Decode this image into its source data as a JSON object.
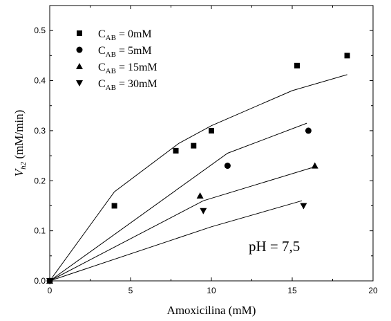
{
  "chart_data": {
    "type": "scatter",
    "xlabel": "Amoxicilina (mM)",
    "ylabel": {
      "main": "V",
      "sub": "h2",
      "unit": " (mM/min)"
    },
    "xlim": [
      0,
      20
    ],
    "ylim": [
      0,
      0.55
    ],
    "xticks": [
      "0",
      "5",
      "10",
      "15",
      "20"
    ],
    "yticks": [
      "0.0",
      "0.1",
      "0.2",
      "0.3",
      "0.4",
      "0.5"
    ],
    "x_tick_values": [
      0,
      5,
      10,
      15,
      20
    ],
    "y_tick_values": [
      0,
      0.1,
      0.2,
      0.3,
      0.4,
      0.5
    ],
    "grid": false,
    "legend_position": "top-left",
    "annotation": "pH = 7,5",
    "series": [
      {
        "name": {
          "pre": "C",
          "sub": "AB",
          "post": " =  0mM"
        },
        "marker": "square",
        "points": [
          [
            0,
            0
          ],
          [
            4.0,
            0.15
          ],
          [
            7.8,
            0.26
          ],
          [
            8.9,
            0.27
          ],
          [
            10.0,
            0.3
          ],
          [
            15.3,
            0.43
          ],
          [
            18.4,
            0.45
          ]
        ],
        "fit": [
          [
            0,
            0
          ],
          [
            4.0,
            0.178
          ],
          [
            8.0,
            0.275
          ],
          [
            10.0,
            0.31
          ],
          [
            15.0,
            0.38
          ],
          [
            18.4,
            0.412
          ]
        ]
      },
      {
        "name": {
          "pre": "C",
          "sub": "AB",
          "post": " =  5mM"
        },
        "marker": "circle",
        "points": [
          [
            0,
            0
          ],
          [
            11.0,
            0.23
          ],
          [
            16.0,
            0.3
          ]
        ],
        "fit": [
          [
            0,
            0
          ],
          [
            11.0,
            0.255
          ],
          [
            15.9,
            0.315
          ]
        ]
      },
      {
        "name": {
          "pre": "C",
          "sub": "AB",
          "post": " = 15mM"
        },
        "marker": "triangle-up",
        "points": [
          [
            0,
            0
          ],
          [
            9.3,
            0.17
          ],
          [
            16.4,
            0.23
          ]
        ],
        "fit": [
          [
            0,
            0
          ],
          [
            9.5,
            0.16
          ],
          [
            16.2,
            0.226
          ]
        ]
      },
      {
        "name": {
          "pre": "C",
          "sub": "AB",
          "post": " = 30mM"
        },
        "marker": "triangle-down",
        "points": [
          [
            0,
            0
          ],
          [
            9.5,
            0.14
          ],
          [
            15.7,
            0.15
          ]
        ],
        "fit": [
          [
            0,
            0
          ],
          [
            10.0,
            0.108
          ],
          [
            15.6,
            0.16
          ]
        ]
      }
    ]
  }
}
